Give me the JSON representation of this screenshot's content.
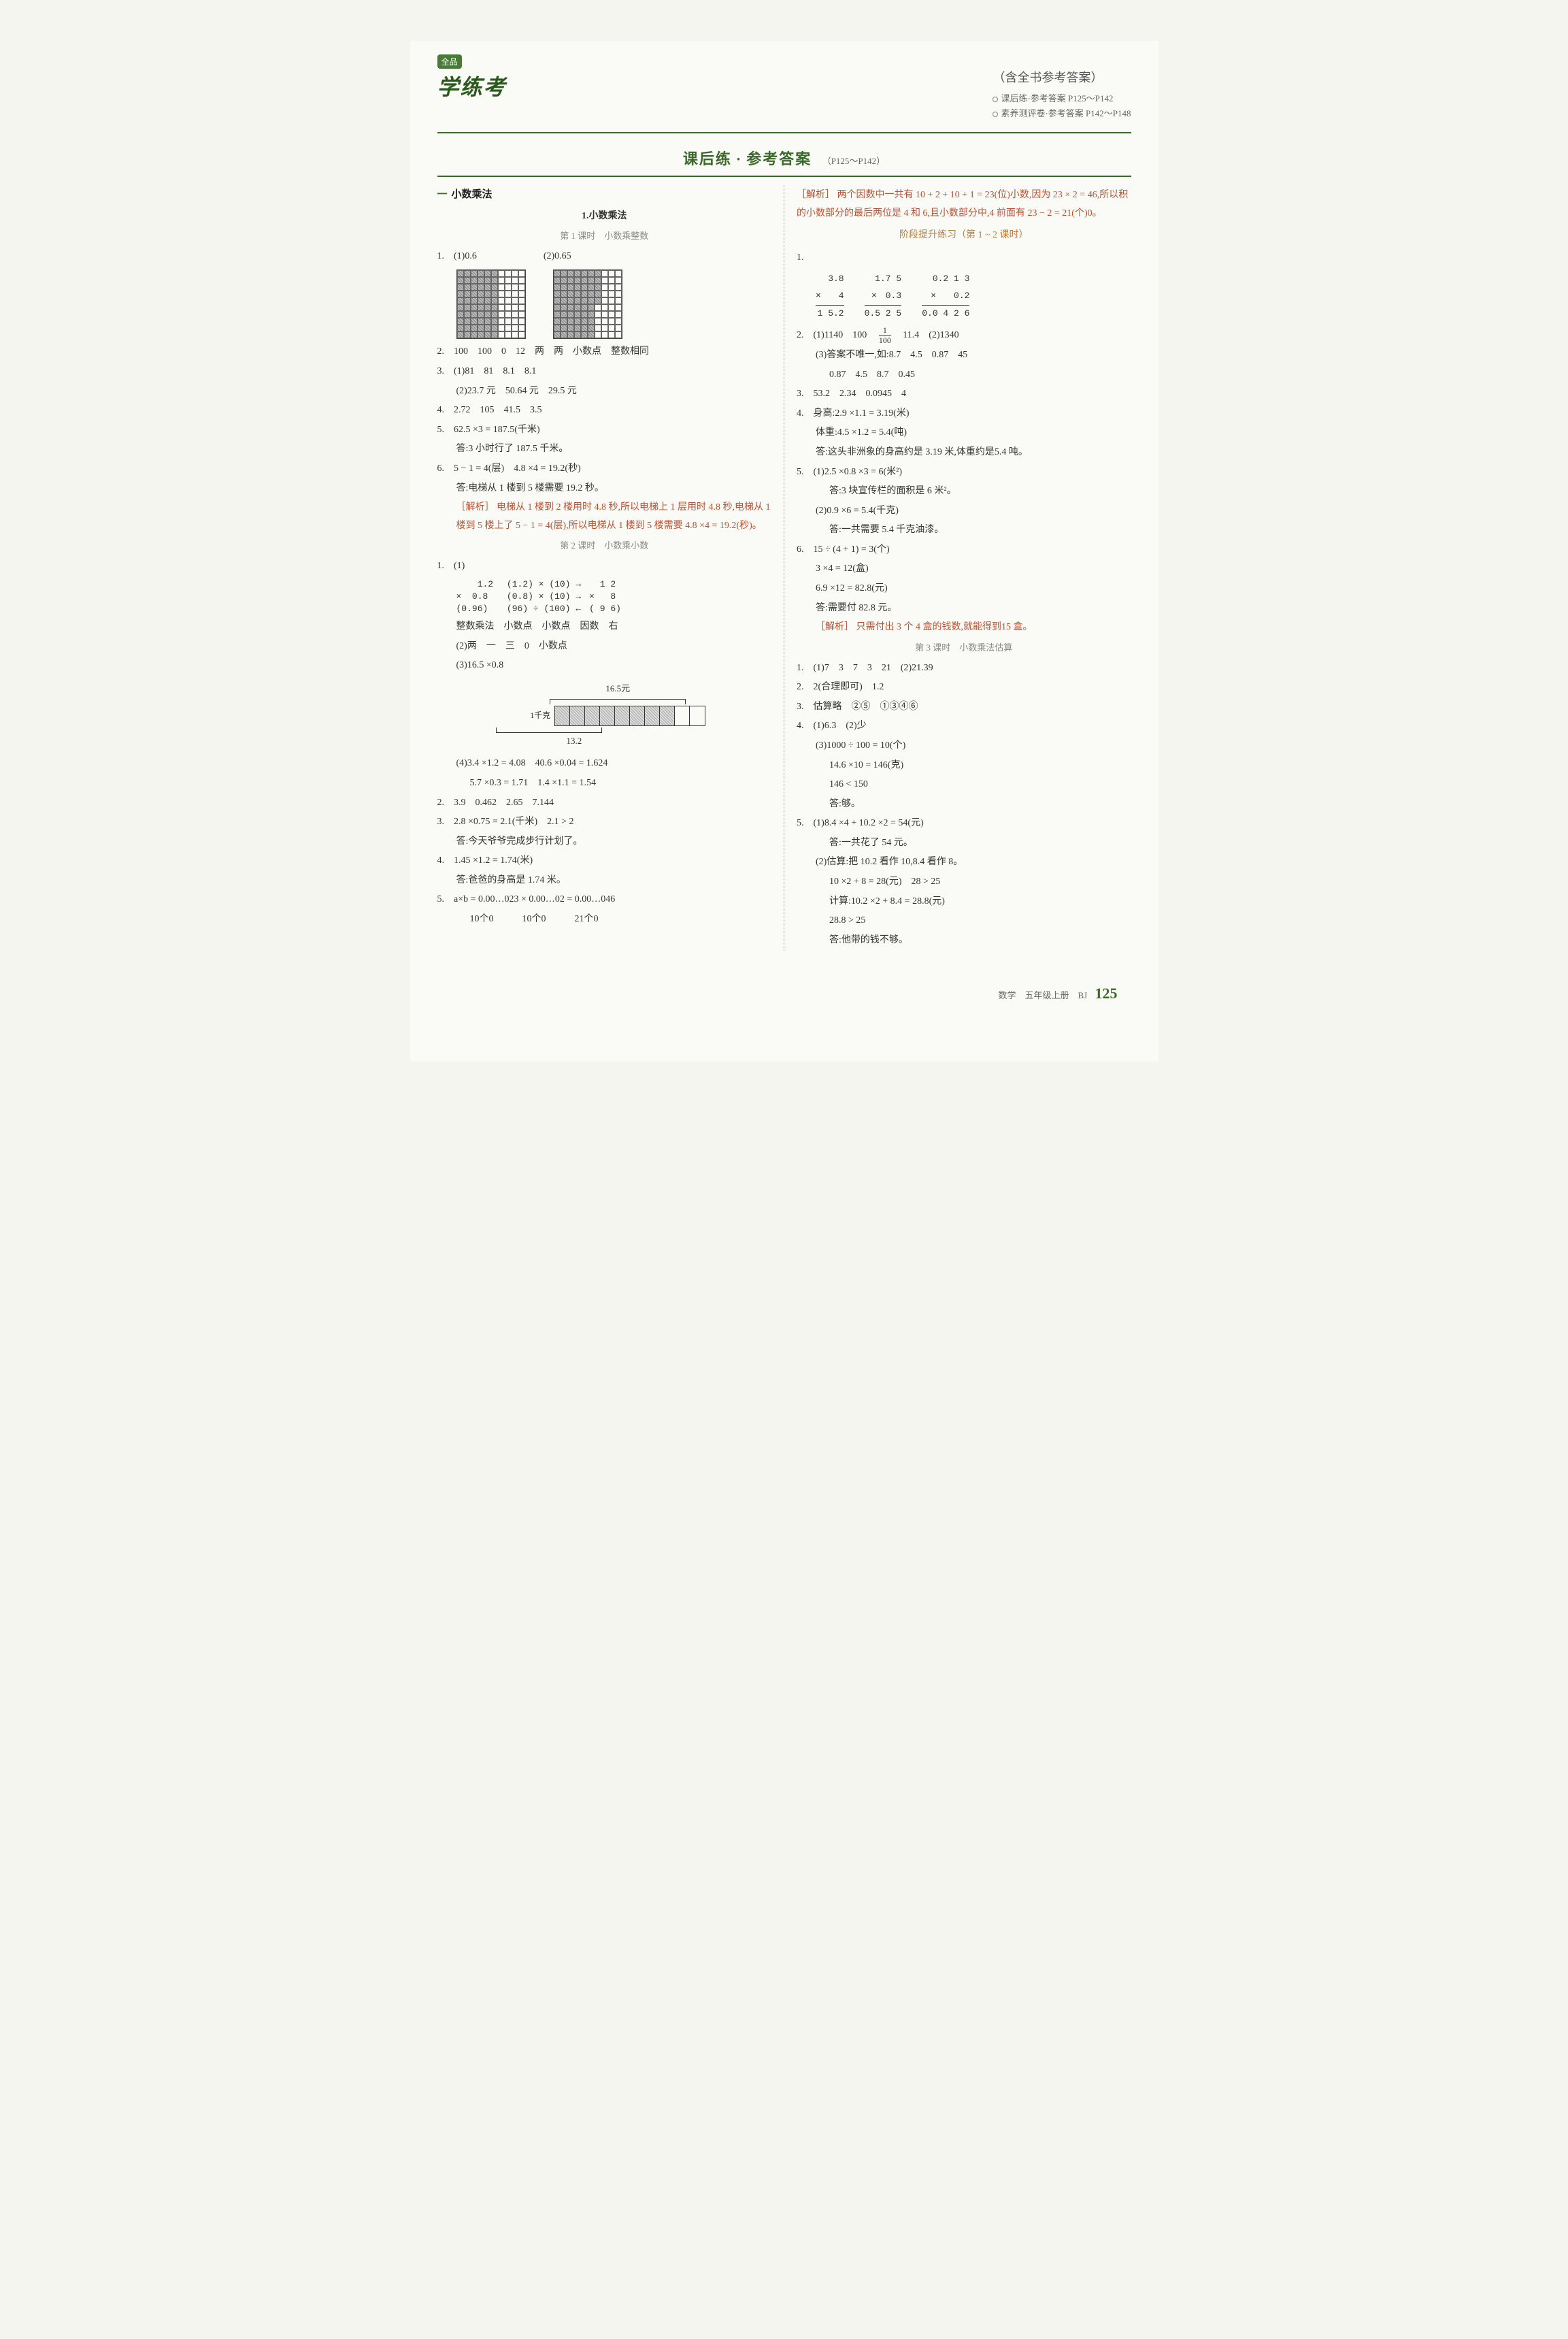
{
  "logo": {
    "badge": "全品",
    "main": "学练考"
  },
  "header": {
    "subtitle": "（含全书参考答案）",
    "line1": "课后练·参考答案  P125～P142",
    "line2": "素养测评卷·参考答案  P142～P148"
  },
  "section": {
    "title_a": "课后练",
    "title_b": "参考答案",
    "pages": "（P125～P142）"
  },
  "unit": {
    "num": "一",
    "name": "小数乘法"
  },
  "s1": {
    "title": "1.小数乘法"
  },
  "lesson1": "第 1 课时　小数乘整数",
  "lesson2": "第 2 课时　小数乘小数",
  "lesson3": "第 3 课时　小数乘法估算",
  "stage": "阶段提升练习（第 1 ~ 2 课时）",
  "L": {
    "q1": "1.　(1)0.6　　　　　　　(2)0.65",
    "q2": "2.　100　100　0　12　两　两　小数点　整数相同",
    "q3a": "3.　(1)81　81　8.1　8.1",
    "q3b": "(2)23.7 元　50.64 元　29.5 元",
    "q4": "4.　2.72　105　41.5　3.5",
    "q5a": "5.　62.5 ×3 = 187.5(千米)",
    "q5b": "答:3 小时行了 187.5 千米。",
    "q6a": "6.　5 − 1 = 4(层)　4.8 ×4 = 19.2(秒)",
    "q6b": "答:电梯从 1 楼到 5 楼需要 19.2 秒。",
    "q6c": "［解析］ 电梯从 1 楼到 2 楼用时 4.8 秒,所以电梯上 1 层用时 4.8 秒,电梯从 1 楼到 5 楼上了 5 − 1 = 4(层),所以电梯从 1 楼到 5 楼需要 4.8 ×4 = 19.2(秒)。",
    "l2q1a": "1.　(1)",
    "l2q1b_left": "    1.2\n×  0.8\n(0.96)",
    "l2q1b_mid": " (1.2) × (10) →\n (0.8) × (10) →\n (96) ÷ (100) ←",
    "l2q1b_right": "  1 2\n×   8\n( 9 6)",
    "l2q1c": "整数乘法　小数点　小数点　因数　右",
    "l2q1d": "(2)两　一　三　0　小数点",
    "l2q1e": "(3)16.5 ×0.8",
    "bar": {
      "top": "16.5元",
      "left": "1千克",
      "bot": "13.2"
    },
    "l2q1f": "(4)3.4 ×1.2 = 4.08　40.6 ×0.04 = 1.624",
    "l2q1g": "5.7 ×0.3 = 1.71　1.4 ×1.1 = 1.54",
    "l2q2": "2.　3.9　0.462　2.65　7.144",
    "l2q3a": "3.　2.8 ×0.75 = 2.1(千米)　2.1 > 2",
    "l2q3b": "答:今天爷爷完成步行计划了。",
    "l2q4a": "4.　1.45 ×1.2 = 1.74(米)",
    "l2q4b": "答:爸爸的身高是 1.74 米。",
    "l2q5a": "5.　a×b = 0.00…023 × 0.00…02 = 0.00…046",
    "l2q5b": "10个0　　　10个0　　　21个0"
  },
  "R": {
    "cont1": "［解析］ 两个因数中一共有 10 + 2 + 10 + 1 = 23(位)小数,因为 23 × 2 = 46,所以积的小数部分的最后两位是 4 和 6,且小数部分中,4 前面有 23 − 2 = 21(个)0。",
    "calc1_a": "  3.8\n×   4\n 1 5.2",
    "calc1_b": "  1.7 5\n×  0.3\n 0.5 2 5",
    "calc1_c": "  0.2 1 3\n×    0.2\n 0.0 4 2 6",
    "stq2a": "2.　(1)1140　100　",
    "frac_n": "1",
    "frac_d": "100",
    "stq2a2": "　11.4　(2)1340",
    "stq2b": "(3)答案不唯一,如:8.7　4.5　0.87　45",
    "stq2c": "0.87　4.5　8.7　0.45",
    "stq3": "3.　53.2　2.34　0.0945　4",
    "stq4a": "4.　身高:2.9 ×1.1 = 3.19(米)",
    "stq4b": "体重:4.5 ×1.2 = 5.4(吨)",
    "stq4c": "答:这头非洲象的身高约是 3.19 米,体重约是5.4 吨。",
    "stq5a": "5.　(1)2.5 ×0.8 ×3 = 6(米²)",
    "stq5b": "答:3 块宣传栏的面积是 6 米²。",
    "stq5c": "(2)0.9 ×6 = 5.4(千克)",
    "stq5d": "答:一共需要 5.4 千克油漆。",
    "stq6a": "6.　15 ÷ (4 + 1) = 3(个)",
    "stq6b": "3 ×4 = 12(盒)",
    "stq6c": "6.9 ×12 = 82.8(元)",
    "stq6d": "答:需要付 82.8 元。",
    "stq6e": "［解析］ 只需付出 3 个 4 盒的钱数,就能得到15 盒。",
    "l3q1": "1.　(1)7　3　7　3　21　(2)21.39",
    "l3q2": "2.　2(合理即可)　1.2",
    "l3q3": "3.　估算略　②⑤　①③④⑥",
    "l3q4a": "4.　(1)6.3　(2)少",
    "l3q4b": "(3)1000 ÷ 100 = 10(个)",
    "l3q4c": "14.6 ×10 = 146(克)",
    "l3q4d": "146 < 150",
    "l3q4e": "答:够。",
    "l3q5a": "5.　(1)8.4 ×4 + 10.2 ×2 = 54(元)",
    "l3q5b": "答:一共花了 54 元。",
    "l3q5c": "(2)估算:把 10.2 看作 10,8.4 看作 8。",
    "l3q5d": "10 ×2 + 8 = 28(元)　28 > 25",
    "l3q5e": "计算:10.2 ×2 + 8.4 = 28.8(元)",
    "l3q5f": "28.8 > 25",
    "l3q5g": "答:他带的钱不够。"
  },
  "footer": {
    "text": "数学　五年级上册　BJ",
    "page": "125"
  }
}
